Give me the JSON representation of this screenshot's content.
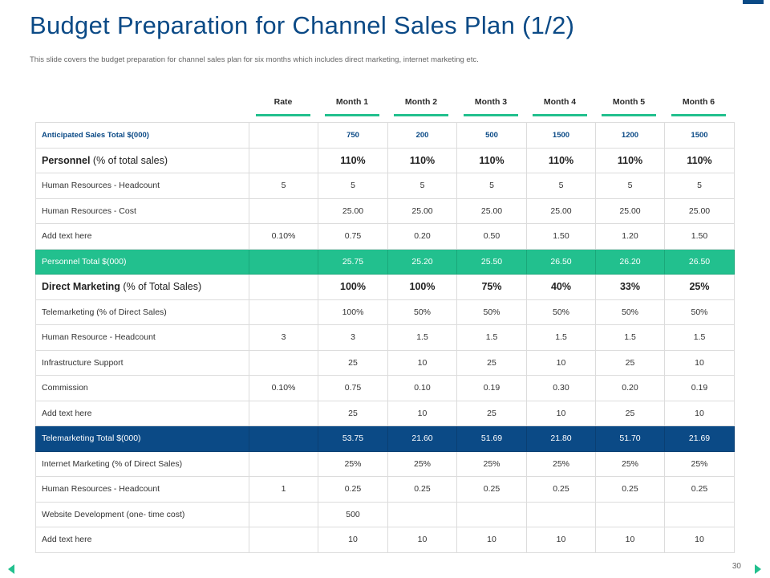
{
  "title": "Budget Preparation for Channel Sales Plan (1/2)",
  "subtitle": "This slide covers the budget preparation for channel sales plan for six months which includes direct marketing, internet marketing etc.",
  "page_number": "30",
  "colors": {
    "accent_green": "#22c08e",
    "accent_navy": "#0b4a86"
  },
  "columns": [
    "Rate",
    "Month 1",
    "Month 2",
    "Month 3",
    "Month 4",
    "Month 5",
    "Month 6"
  ],
  "rows": [
    {
      "label": "Anticipated Sales Total $(000)",
      "cells": [
        "",
        "750",
        "200",
        "500",
        "1500",
        "1200",
        "1500"
      ]
    },
    {
      "label": "Personnel",
      "label_suffix": " (% of total sales)",
      "cells": [
        "",
        "110%",
        "110%",
        "110%",
        "110%",
        "110%",
        "110%"
      ]
    },
    {
      "label": "Human Resources - Headcount",
      "cells": [
        "5",
        "5",
        "5",
        "5",
        "5",
        "5",
        "5"
      ]
    },
    {
      "label": "Human Resources - Cost",
      "cells": [
        "",
        "25.00",
        "25.00",
        "25.00",
        "25.00",
        "25.00",
        "25.00"
      ]
    },
    {
      "label": "Add text here",
      "cells": [
        "0.10%",
        "0.75",
        "0.20",
        "0.50",
        "1.50",
        "1.20",
        "1.50"
      ]
    },
    {
      "label": "Personnel Total $(000)",
      "cells": [
        "",
        "25.75",
        "25.20",
        "25.50",
        "26.50",
        "26.20",
        "26.50"
      ]
    },
    {
      "label": "Direct Marketing",
      "label_suffix": " (% of Total Sales)",
      "cells": [
        "",
        "100%",
        "100%",
        "75%",
        "40%",
        "33%",
        "25%"
      ]
    },
    {
      "label": "Telemarketing (% of Direct Sales)",
      "cells": [
        "",
        "100%",
        "50%",
        "50%",
        "50%",
        "50%",
        "50%"
      ]
    },
    {
      "label": "Human Resource - Headcount",
      "cells": [
        "3",
        "3",
        "1.5",
        "1.5",
        "1.5",
        "1.5",
        "1.5"
      ]
    },
    {
      "label": "Infrastructure Support",
      "cells": [
        "",
        "25",
        "10",
        "25",
        "10",
        "25",
        "10"
      ]
    },
    {
      "label": "Commission",
      "cells": [
        "0.10%",
        "0.75",
        "0.10",
        "0.19",
        "0.30",
        "0.20",
        "0.19"
      ]
    },
    {
      "label": "Add text here",
      "cells": [
        "",
        "25",
        "10",
        "25",
        "10",
        "25",
        "10"
      ]
    },
    {
      "label": "Telemarketing Total $(000)",
      "cells": [
        "",
        "53.75",
        "21.60",
        "51.69",
        "21.80",
        "51.70",
        "21.69"
      ]
    },
    {
      "label": "Internet Marketing (% of Direct Sales)",
      "cells": [
        "",
        "25%",
        "25%",
        "25%",
        "25%",
        "25%",
        "25%"
      ]
    },
    {
      "label": "Human Resources - Headcount",
      "cells": [
        "1",
        "0.25",
        "0.25",
        "0.25",
        "0.25",
        "0.25",
        "0.25"
      ]
    },
    {
      "label": "Website Development (one- time cost)",
      "cells": [
        "",
        "500",
        "",
        "",
        "",
        "",
        ""
      ]
    },
    {
      "label": "Add text here",
      "cells": [
        "",
        "10",
        "10",
        "10",
        "10",
        "10",
        "10"
      ]
    }
  ]
}
